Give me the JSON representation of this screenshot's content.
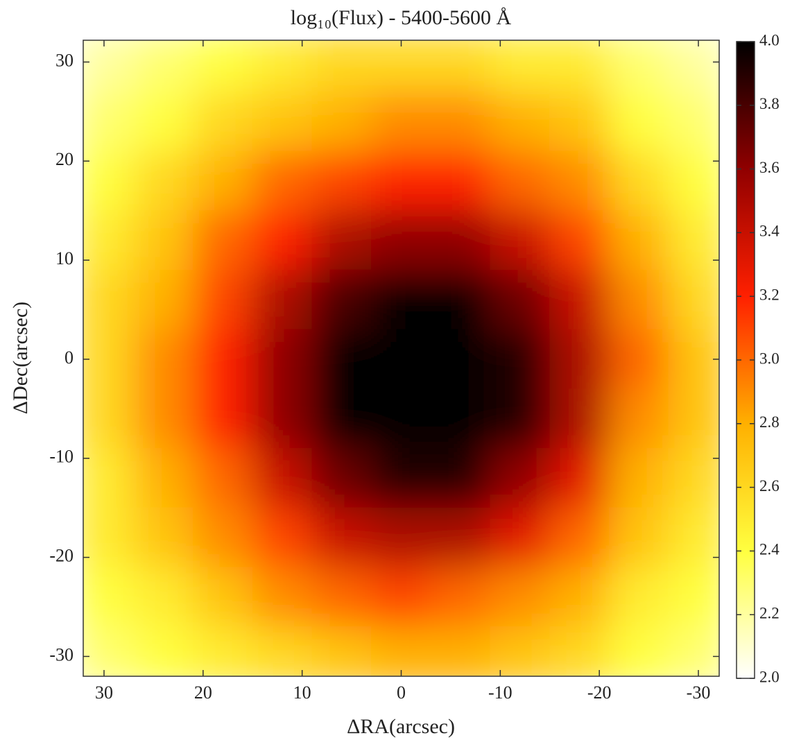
{
  "chart_data": {
    "type": "heatmap",
    "title": "log₁₀(Flux) - 5400-5600 Å",
    "xlabel": "ΔRA(arcsec)",
    "ylabel": "ΔDec(arcsec)",
    "x": [
      30,
      24,
      18,
      12,
      6,
      0,
      -6,
      -12,
      -18,
      -24,
      -30
    ],
    "y": [
      30,
      24,
      18,
      12,
      6,
      0,
      -6,
      -12,
      -18,
      -24,
      -30
    ],
    "z": [
      [
        2.2,
        2.3,
        2.4,
        2.5,
        2.6,
        2.6,
        2.6,
        2.5,
        2.5,
        2.3,
        2.2
      ],
      [
        2.3,
        2.4,
        2.6,
        2.7,
        2.8,
        2.9,
        2.9,
        2.8,
        2.7,
        2.4,
        2.3
      ],
      [
        2.4,
        2.6,
        2.8,
        3.0,
        3.1,
        3.2,
        3.2,
        3.0,
        2.9,
        2.6,
        2.4
      ],
      [
        2.5,
        2.7,
        3.0,
        3.2,
        3.5,
        3.6,
        3.6,
        3.4,
        3.1,
        2.8,
        2.5
      ],
      [
        2.6,
        2.8,
        3.1,
        3.5,
        3.8,
        4.0,
        4.0,
        3.7,
        3.4,
        2.9,
        2.6
      ],
      [
        2.6,
        2.9,
        3.2,
        3.6,
        4.0,
        4.0,
        4.0,
        3.9,
        3.5,
        3.0,
        2.7
      ],
      [
        2.6,
        2.9,
        3.2,
        3.6,
        4.0,
        4.0,
        4.0,
        3.9,
        3.5,
        2.9,
        2.7
      ],
      [
        2.5,
        2.8,
        3.0,
        3.4,
        3.7,
        3.9,
        3.9,
        3.6,
        3.3,
        2.8,
        2.6
      ],
      [
        2.5,
        2.7,
        2.9,
        3.1,
        3.4,
        3.5,
        3.5,
        3.3,
        3.0,
        2.7,
        2.5
      ],
      [
        2.4,
        2.5,
        2.7,
        2.9,
        3.0,
        3.1,
        3.0,
        2.9,
        2.8,
        2.5,
        2.4
      ],
      [
        2.3,
        2.4,
        2.5,
        2.6,
        2.7,
        2.8,
        2.8,
        2.7,
        2.6,
        2.4,
        2.3
      ]
    ],
    "xlim": [
      32.1,
      -32.1
    ],
    "ylim": [
      -32,
      32.2
    ],
    "xticks": [
      30,
      20,
      10,
      0,
      -10,
      -20,
      -30
    ],
    "yticks": [
      30,
      20,
      10,
      0,
      -10,
      -20,
      -30
    ],
    "clim": [
      2,
      4
    ],
    "cticks": [
      {
        "value": 2,
        "label": "2.0"
      },
      2.2,
      2.4,
      2.6,
      2.8,
      {
        "value": 3,
        "label": "3.0"
      },
      3.2,
      3.4,
      3.6,
      3.8,
      {
        "value": 4,
        "label": "4.0"
      }
    ],
    "colormap": [
      "#ffffff",
      "#ffff40",
      "#ffb000",
      "#ff2000",
      "#900000",
      "#000000"
    ]
  }
}
